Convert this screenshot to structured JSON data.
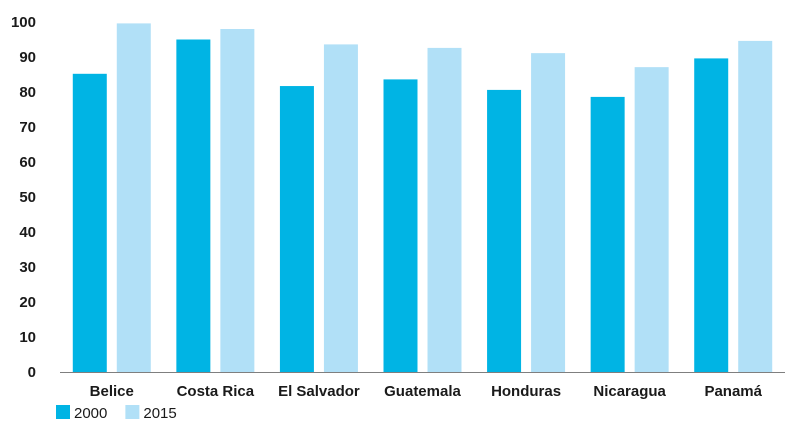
{
  "chart_data": {
    "type": "bar",
    "title": "",
    "xlabel": "",
    "ylabel": "",
    "categories": [
      "Belice",
      "Costa Rica",
      "El Salvador",
      "Guatemala",
      "Honduras",
      "Nicaragua",
      "Panamá"
    ],
    "series": [
      {
        "name": "2000",
        "color": "#00b4e4",
        "values": [
          85.2,
          95.0,
          81.7,
          83.6,
          80.6,
          78.6,
          89.6
        ]
      },
      {
        "name": "2015",
        "color": "#b1e0f7",
        "values": [
          99.6,
          98.0,
          93.6,
          92.6,
          91.1,
          87.1,
          94.6
        ]
      }
    ],
    "ylim": [
      0,
      100
    ],
    "yticks": [
      0,
      10,
      20,
      30,
      40,
      50,
      60,
      70,
      80,
      90,
      100
    ],
    "grid": false,
    "legend": "bottom-left"
  }
}
